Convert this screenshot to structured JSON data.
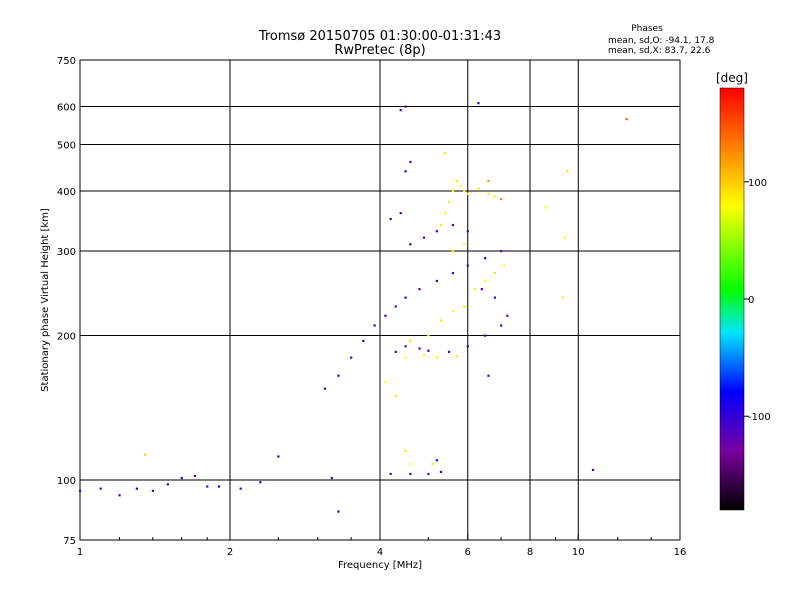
{
  "header": {
    "title_line1": "Tromsø 20150705 01:30:00-01:31:43",
    "title_line2": "RwPretec (8p)",
    "stats_title": "Phases",
    "stats_o": "mean, sd,O: -94.1, 17.8",
    "stats_x": "mean, sd,X: 83.7, 22.6"
  },
  "chart_data": {
    "type": "scatter",
    "xlabel": "Frequency [MHz]",
    "ylabel": "Stationary phase Virtual Height [km]",
    "xscale": "log",
    "yscale": "log",
    "xlim": [
      1,
      16
    ],
    "ylim": [
      75,
      750
    ],
    "x_ticks": [
      1,
      2,
      4,
      6,
      8,
      10,
      16
    ],
    "x_tick_labels": [
      "1",
      "2",
      "4",
      "6",
      "8",
      "10",
      "16"
    ],
    "x_gridlines": [
      2,
      4,
      6,
      8,
      10
    ],
    "y_ticks": [
      75,
      100,
      200,
      300,
      400,
      500,
      600,
      750
    ],
    "y_tick_labels": [
      "75",
      "100",
      "200",
      "300",
      "400",
      "500",
      "600",
      "750"
    ],
    "y_gridlines": [
      100,
      200,
      300,
      400,
      500,
      600
    ],
    "grid": true,
    "colorbar": {
      "label": "[deg]",
      "range": [
        -180,
        180
      ],
      "ticks": [
        -100,
        0,
        100
      ],
      "tick_labels": [
        "-100",
        "0",
        "100"
      ],
      "colormap": [
        "#000000",
        "#7a00a0",
        "#0000ff",
        "#00e5ff",
        "#00ff00",
        "#ffff00",
        "#ff8000",
        "#ff0000"
      ]
    },
    "series": [
      {
        "points": [
          [
            1.0,
            95,
            -100
          ],
          [
            1.1,
            96,
            -100
          ],
          [
            1.2,
            93,
            -110
          ],
          [
            1.3,
            96,
            -100
          ],
          [
            1.4,
            95,
            -95
          ],
          [
            1.5,
            98,
            -100
          ],
          [
            1.6,
            101,
            -100
          ],
          [
            1.7,
            102,
            -110
          ],
          [
            1.8,
            97,
            -100
          ],
          [
            1.9,
            97,
            -90
          ],
          [
            2.1,
            96,
            -100
          ],
          [
            2.3,
            99,
            -100
          ],
          [
            2.5,
            112,
            -100
          ],
          [
            1.35,
            113,
            100
          ],
          [
            3.2,
            101,
            -110
          ],
          [
            3.3,
            86,
            -100
          ],
          [
            4.2,
            103,
            -110
          ],
          [
            4.6,
            103,
            -100
          ],
          [
            5.0,
            103,
            -120
          ],
          [
            5.3,
            104,
            -100
          ],
          [
            3.1,
            155,
            -100
          ],
          [
            3.3,
            165,
            -110
          ],
          [
            3.5,
            180,
            -100
          ],
          [
            3.7,
            195,
            -100
          ],
          [
            3.9,
            210,
            -100
          ],
          [
            4.1,
            220,
            -110
          ],
          [
            4.3,
            230,
            -100
          ],
          [
            4.5,
            240,
            -100
          ],
          [
            4.8,
            250,
            -110
          ],
          [
            5.2,
            260,
            -100
          ],
          [
            5.6,
            270,
            -100
          ],
          [
            6.0,
            280,
            -110
          ],
          [
            6.5,
            290,
            -100
          ],
          [
            7.0,
            300,
            -110
          ],
          [
            4.2,
            350,
            -100
          ],
          [
            4.4,
            360,
            -110
          ],
          [
            4.5,
            440,
            -100
          ],
          [
            4.6,
            460,
            -110
          ],
          [
            4.4,
            590,
            -100
          ],
          [
            4.5,
            600,
            -110
          ],
          [
            4.3,
            185,
            -110
          ],
          [
            4.5,
            190,
            -100
          ],
          [
            4.8,
            188,
            -110
          ],
          [
            5.0,
            186,
            -100
          ],
          [
            5.5,
            185,
            -110
          ],
          [
            6.0,
            190,
            -100
          ],
          [
            6.5,
            200,
            -110
          ],
          [
            7.0,
            210,
            -100
          ],
          [
            4.6,
            310,
            -100
          ],
          [
            4.9,
            320,
            -110
          ],
          [
            5.2,
            330,
            -100
          ],
          [
            5.6,
            340,
            -110
          ],
          [
            6.0,
            330,
            -100
          ],
          [
            6.4,
            250,
            -110
          ],
          [
            6.8,
            240,
            -100
          ],
          [
            7.2,
            220,
            -110
          ],
          [
            10.7,
            105,
            -110
          ],
          [
            6.3,
            610,
            -100
          ],
          [
            5.2,
            110,
            -100
          ],
          [
            6.6,
            165,
            -100
          ]
        ]
      },
      {
        "points": [
          [
            4.6,
            195,
            90
          ],
          [
            5.0,
            200,
            80
          ],
          [
            5.3,
            215,
            90
          ],
          [
            5.6,
            225,
            80
          ],
          [
            5.9,
            230,
            90
          ],
          [
            6.2,
            250,
            70
          ],
          [
            6.5,
            260,
            80
          ],
          [
            6.8,
            270,
            90
          ],
          [
            7.1,
            280,
            80
          ],
          [
            5.3,
            340,
            90
          ],
          [
            5.4,
            360,
            80
          ],
          [
            5.5,
            380,
            90
          ],
          [
            5.6,
            400,
            80
          ],
          [
            5.7,
            420,
            90
          ],
          [
            5.8,
            410,
            80
          ],
          [
            5.9,
            400,
            90
          ],
          [
            6.0,
            395,
            80
          ],
          [
            6.3,
            405,
            70
          ],
          [
            6.6,
            395,
            90
          ],
          [
            6.8,
            390,
            80
          ],
          [
            5.6,
            300,
            90
          ],
          [
            5.9,
            310,
            80
          ],
          [
            4.5,
            180,
            80
          ],
          [
            4.9,
            182,
            90
          ],
          [
            5.2,
            180,
            80
          ],
          [
            5.7,
            181,
            90
          ],
          [
            4.1,
            160,
            80
          ],
          [
            4.3,
            150,
            90
          ],
          [
            4.5,
            115,
            90
          ],
          [
            4.6,
            108,
            80
          ],
          [
            5.1,
            108,
            90
          ],
          [
            9.5,
            440,
            90
          ],
          [
            9.4,
            320,
            80
          ],
          [
            9.3,
            240,
            90
          ],
          [
            8.6,
            370,
            80
          ],
          [
            12.5,
            565,
            150
          ],
          [
            6.6,
            420,
            120
          ],
          [
            7.0,
            385,
            130
          ],
          [
            5.4,
            480,
            90
          ]
        ]
      }
    ]
  }
}
